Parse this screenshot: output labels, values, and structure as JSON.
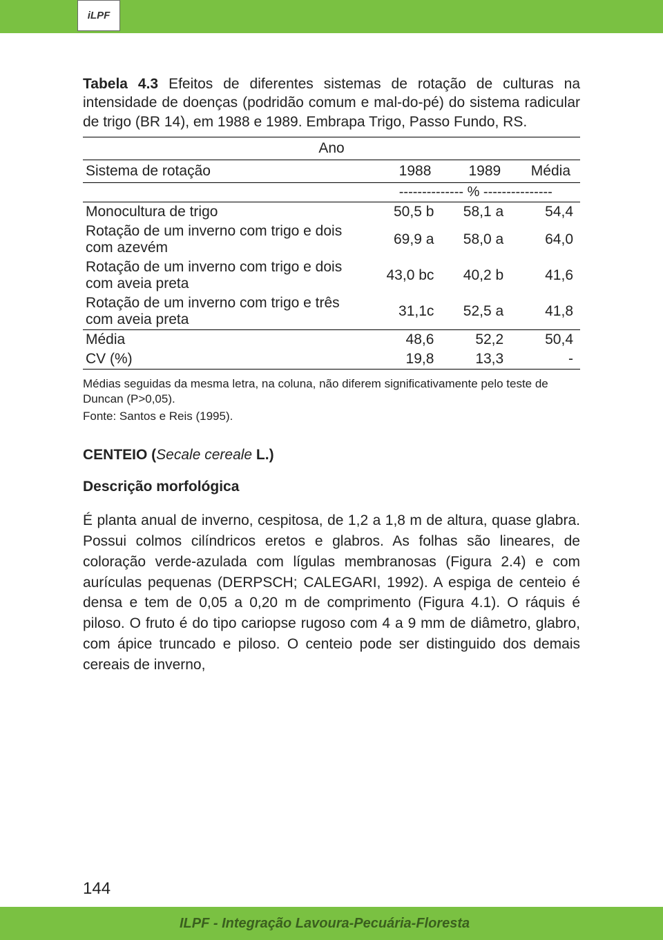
{
  "header": {
    "logo_label": "iLPF",
    "topbar_color": "#7ac142"
  },
  "table_caption": {
    "label": "Tabela 4.3",
    "text": " Efeitos de diferentes sistemas de rotação de culturas na intensidade de doenças (podridão comum e mal-do-pé) do sistema radicular de trigo (BR 14), em 1988 e 1989. Embrapa Trigo, Passo Fundo, RS."
  },
  "table": {
    "ano_label": "Ano",
    "col_label": "Sistema de rotação",
    "cols": [
      "1988",
      "1989",
      "Média"
    ],
    "pct_separator": "-------------- % ---------------",
    "rows": [
      {
        "label": "Monocultura de trigo",
        "vals": [
          "50,5 b",
          "58,1 a",
          "54,4"
        ]
      },
      {
        "label": "Rotação de um inverno com trigo e dois com azevém",
        "vals": [
          "69,9 a",
          "58,0 a",
          "64,0"
        ]
      },
      {
        "label": "Rotação de um inverno com trigo e dois com aveia preta",
        "vals": [
          "43,0 bc",
          "40,2 b",
          "41,6"
        ]
      },
      {
        "label": "Rotação de um inverno com trigo e três com aveia preta",
        "vals": [
          "31,1c",
          "52,5 a",
          "41,8"
        ]
      }
    ],
    "summary": [
      {
        "label": "Média",
        "vals": [
          "48,6",
          "52,2",
          "50,4"
        ]
      },
      {
        "label": "CV (%)",
        "vals": [
          "19,8",
          "13,3",
          "-"
        ]
      }
    ]
  },
  "footnote": "Médias seguidas da mesma letra, na coluna, não diferem significativamente pelo teste de Duncan (P>0,05).",
  "source": "Fonte: Santos e Reis (1995).",
  "section_heading": {
    "pre": "CENTEIO (",
    "ital": "Secale cereale",
    "post": " L.)"
  },
  "subheading": "Descrição morfológica",
  "body": "É planta anual de inverno, cespitosa, de 1,2 a 1,8 m de altura, quase glabra. Possui colmos cilíndricos eretos e glabros. As folhas são lineares, de coloração verde-azulada com lígulas membranosas (Figura 2.4) e com aurículas pequenas (DERPSCH; CALEGARI, 1992). A espiga de centeio é densa e tem de 0,05 a 0,20 m de comprimento (Figura 4.1). O ráquis é piloso. O fruto é do tipo cariopse rugoso com 4 a 9 mm de diâmetro, glabro, com ápice truncado e piloso. O centeio pode ser distinguido dos demais cereais de inverno,",
  "footer": {
    "text": "ILPF - Integração Lavoura-Pecuária-Floresta",
    "page": "144"
  }
}
